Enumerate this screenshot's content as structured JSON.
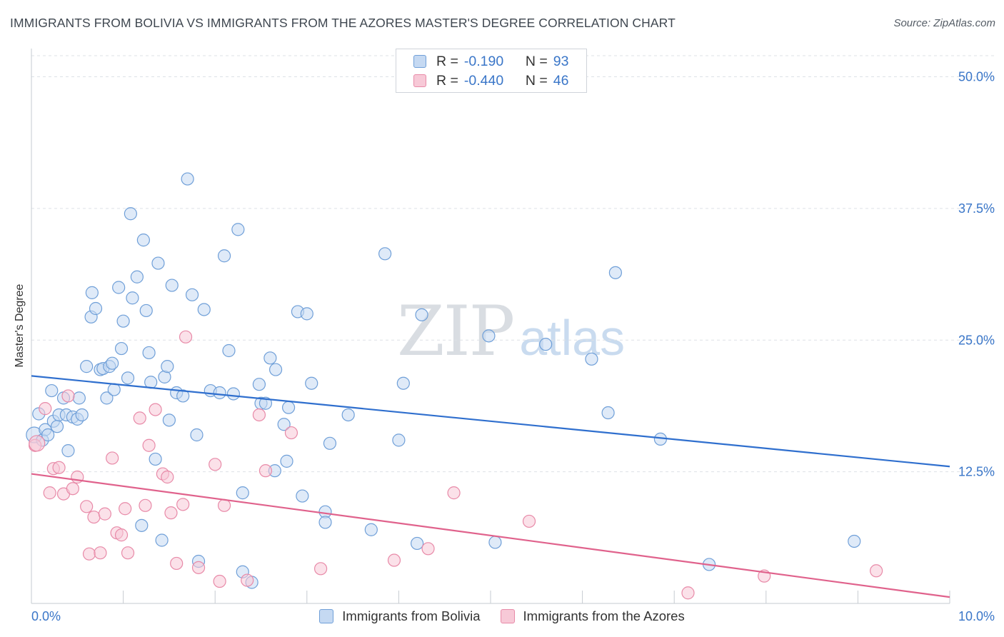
{
  "header": {
    "title": "IMMIGRANTS FROM BOLIVIA VS IMMIGRANTS FROM THE AZORES MASTER'S DEGREE CORRELATION CHART",
    "source": "Source: ZipAtlas.com"
  },
  "watermark": {
    "zip": "ZIP",
    "atlas": "atlas"
  },
  "colors": {
    "bolivia_fill": "#c5d9f2",
    "bolivia_stroke": "#6f9fd8",
    "bolivia_line": "#2f6fce",
    "azores_fill": "#f7c9d7",
    "azores_stroke": "#e88aa8",
    "azores_line": "#e0628c",
    "axis_value": "#3a76c8",
    "grid": "#dde1e6"
  },
  "legend_top": {
    "rows": [
      {
        "r_label": "R =",
        "r_value": "-0.190",
        "n_label": "N =",
        "n_value": "93",
        "series": "bolivia"
      },
      {
        "r_label": "R =",
        "r_value": "-0.440",
        "n_label": "N =",
        "n_value": "46",
        "series": "azores"
      }
    ]
  },
  "chart_data": {
    "type": "scatter",
    "title": "IMMIGRANTS FROM BOLIVIA VS IMMIGRANTS FROM THE AZORES MASTER'S DEGREE CORRELATION CHART",
    "xlabel": "",
    "ylabel": "Master's Degree",
    "xlim": [
      0,
      10
    ],
    "ylim": [
      0,
      52
    ],
    "x_tick_labels": [
      "0.0%",
      "10.0%"
    ],
    "y_ticks": [
      12.5,
      25.0,
      37.5,
      50.0
    ],
    "y_tick_labels": [
      "12.5%",
      "25.0%",
      "37.5%",
      "50.0%"
    ],
    "grid": true,
    "legend_position": "bottom",
    "series": [
      {
        "name": "Immigrants from Bolivia",
        "key": "bolivia",
        "R": -0.19,
        "N": 93,
        "trend": {
          "x0": 0,
          "y0": 21.6,
          "x1": 10,
          "y1": 13.0
        },
        "points": [
          [
            0.03,
            16.0
          ],
          [
            0.08,
            18.0
          ],
          [
            0.12,
            15.5
          ],
          [
            0.15,
            16.5
          ],
          [
            0.18,
            16.0
          ],
          [
            0.22,
            20.2
          ],
          [
            0.24,
            17.3
          ],
          [
            0.28,
            16.8
          ],
          [
            0.3,
            17.9
          ],
          [
            0.35,
            19.5
          ],
          [
            0.38,
            17.9
          ],
          [
            0.4,
            14.5
          ],
          [
            0.45,
            17.7
          ],
          [
            0.5,
            17.5
          ],
          [
            0.52,
            19.5
          ],
          [
            0.55,
            17.9
          ],
          [
            0.6,
            22.5
          ],
          [
            0.65,
            27.2
          ],
          [
            0.66,
            29.5
          ],
          [
            0.7,
            28.0
          ],
          [
            0.75,
            22.2
          ],
          [
            0.78,
            22.3
          ],
          [
            0.82,
            19.5
          ],
          [
            0.85,
            22.5
          ],
          [
            0.88,
            22.8
          ],
          [
            0.9,
            20.3
          ],
          [
            0.95,
            30.0
          ],
          [
            0.98,
            24.2
          ],
          [
            1.0,
            26.8
          ],
          [
            1.05,
            21.4
          ],
          [
            1.08,
            37.0
          ],
          [
            1.1,
            29.0
          ],
          [
            1.15,
            31.0
          ],
          [
            1.2,
            7.4
          ],
          [
            1.22,
            34.5
          ],
          [
            1.25,
            27.8
          ],
          [
            1.28,
            23.8
          ],
          [
            1.3,
            21.0
          ],
          [
            1.35,
            13.7
          ],
          [
            1.38,
            32.3
          ],
          [
            1.42,
            6.0
          ],
          [
            1.45,
            21.5
          ],
          [
            1.48,
            22.5
          ],
          [
            1.5,
            17.4
          ],
          [
            1.53,
            30.2
          ],
          [
            1.58,
            20.0
          ],
          [
            1.65,
            19.7
          ],
          [
            1.7,
            40.3
          ],
          [
            1.75,
            29.3
          ],
          [
            1.8,
            16.0
          ],
          [
            1.82,
            4.0
          ],
          [
            1.88,
            27.9
          ],
          [
            1.95,
            20.2
          ],
          [
            2.05,
            20.0
          ],
          [
            2.1,
            33.0
          ],
          [
            2.15,
            24.0
          ],
          [
            2.2,
            19.9
          ],
          [
            2.25,
            35.5
          ],
          [
            2.3,
            3.0
          ],
          [
            2.3,
            10.5
          ],
          [
            2.4,
            2.0
          ],
          [
            2.48,
            20.8
          ],
          [
            2.5,
            19.0
          ],
          [
            2.55,
            19.0
          ],
          [
            2.6,
            23.3
          ],
          [
            2.65,
            12.6
          ],
          [
            2.66,
            22.2
          ],
          [
            2.75,
            17.0
          ],
          [
            2.78,
            13.5
          ],
          [
            2.8,
            18.6
          ],
          [
            2.9,
            27.7
          ],
          [
            2.95,
            10.2
          ],
          [
            3.0,
            27.5
          ],
          [
            3.05,
            20.9
          ],
          [
            3.2,
            8.7
          ],
          [
            3.2,
            7.7
          ],
          [
            3.25,
            15.2
          ],
          [
            3.45,
            17.9
          ],
          [
            3.7,
            7.0
          ],
          [
            3.85,
            33.2
          ],
          [
            4.0,
            15.5
          ],
          [
            4.05,
            20.9
          ],
          [
            4.2,
            5.7
          ],
          [
            4.25,
            27.4
          ],
          [
            4.98,
            25.4
          ],
          [
            5.05,
            5.8
          ],
          [
            5.6,
            24.6
          ],
          [
            6.1,
            23.2
          ],
          [
            6.28,
            18.1
          ],
          [
            6.36,
            31.4
          ],
          [
            6.85,
            15.6
          ],
          [
            7.38,
            3.7
          ],
          [
            8.96,
            5.9
          ]
        ]
      },
      {
        "name": "Immigrants from the Azores",
        "key": "azores",
        "R": -0.44,
        "N": 46,
        "trend": {
          "x0": 0,
          "y0": 12.3,
          "x1": 10,
          "y1": 0.6
        },
        "points": [
          [
            0.04,
            15.0
          ],
          [
            0.15,
            18.5
          ],
          [
            0.2,
            10.5
          ],
          [
            0.24,
            12.8
          ],
          [
            0.3,
            12.9
          ],
          [
            0.35,
            10.4
          ],
          [
            0.4,
            19.7
          ],
          [
            0.45,
            10.9
          ],
          [
            0.5,
            12.0
          ],
          [
            0.6,
            9.2
          ],
          [
            0.63,
            4.7
          ],
          [
            0.68,
            8.2
          ],
          [
            0.75,
            4.8
          ],
          [
            0.8,
            8.5
          ],
          [
            0.88,
            13.8
          ],
          [
            0.93,
            6.7
          ],
          [
            0.98,
            6.5
          ],
          [
            1.02,
            9.0
          ],
          [
            1.05,
            4.8
          ],
          [
            1.18,
            17.6
          ],
          [
            1.24,
            9.3
          ],
          [
            1.28,
            15.0
          ],
          [
            1.35,
            18.4
          ],
          [
            1.43,
            12.3
          ],
          [
            1.48,
            12.0
          ],
          [
            1.52,
            8.6
          ],
          [
            1.58,
            3.8
          ],
          [
            1.65,
            9.4
          ],
          [
            1.68,
            25.3
          ],
          [
            1.82,
            3.4
          ],
          [
            2.0,
            13.2
          ],
          [
            2.05,
            2.1
          ],
          [
            2.1,
            9.3
          ],
          [
            2.35,
            2.2
          ],
          [
            2.48,
            17.9
          ],
          [
            2.55,
            12.6
          ],
          [
            2.83,
            16.2
          ],
          [
            3.15,
            3.3
          ],
          [
            3.95,
            4.1
          ],
          [
            4.32,
            5.2
          ],
          [
            4.6,
            10.5
          ],
          [
            5.42,
            7.8
          ],
          [
            7.15,
            1.0
          ],
          [
            7.98,
            2.6
          ],
          [
            9.2,
            3.1
          ],
          [
            0.06,
            15.2
          ]
        ]
      }
    ]
  },
  "bottom_legend": {
    "items": [
      {
        "label": "Immigrants from Bolivia",
        "series": "bolivia"
      },
      {
        "label": "Immigrants from the Azores",
        "series": "azores"
      }
    ]
  }
}
